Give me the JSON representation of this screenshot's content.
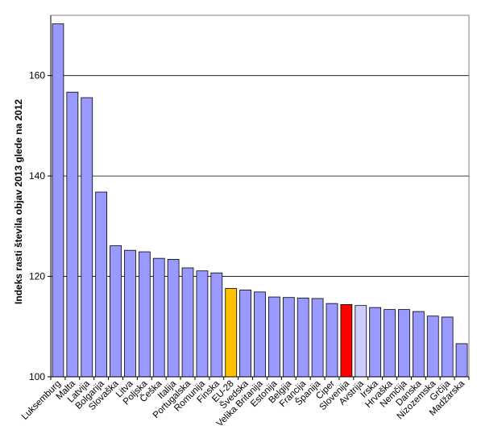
{
  "chart_data": {
    "type": "bar",
    "title": "",
    "xlabel": "",
    "ylabel": "Indeks rasti števila objav 2013 glede na 2012",
    "ylim": [
      100,
      172
    ],
    "yticks": [
      100,
      120,
      140,
      160
    ],
    "grid": true,
    "legend": "none",
    "categories": [
      "Luksemburg",
      "Malta",
      "Latvija",
      "Bolgarija",
      "Slovaška",
      "Litva",
      "Poljska",
      "Češka",
      "Italija",
      "Portugalska",
      "Romunija",
      "Finska",
      "EU-28",
      "Švedska",
      "Velika Britanija",
      "Estonija",
      "Belgija",
      "Francija",
      "Španija",
      "Ciper",
      "Slovenija",
      "Avstrija",
      "Irska",
      "Hrvaška",
      "Nemčija",
      "Danska",
      "Nizozemska",
      "Grčija",
      "Madžarska"
    ],
    "values": [
      170.3,
      156.7,
      155.6,
      136.8,
      126.1,
      125.2,
      124.9,
      123.6,
      123.4,
      121.7,
      121.1,
      120.7,
      117.6,
      117.3,
      116.9,
      115.9,
      115.8,
      115.7,
      115.6,
      114.6,
      114.4,
      114.2,
      113.8,
      113.4,
      113.4,
      113.0,
      112.1,
      111.9,
      106.6
    ],
    "colors": {
      "default": "#9999ff",
      "highlight": {
        "EU-28": "#ffc000",
        "Slovenija": "#ff0000",
        "Avstrija": "#ccccff"
      },
      "bar_stroke": "#000000",
      "grid": "#000000"
    }
  }
}
